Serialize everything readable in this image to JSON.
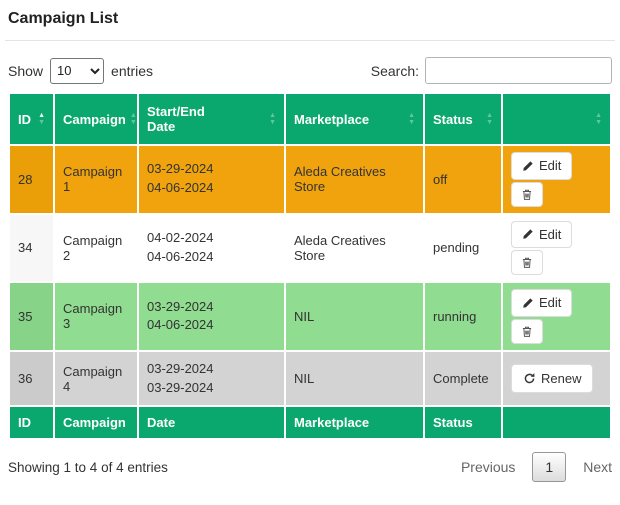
{
  "page": {
    "title": "Campaign List"
  },
  "controls": {
    "show_label": "Show",
    "page_length": "10",
    "entries_label": "entries",
    "search_label": "Search:",
    "search_value": "",
    "search_placeholder": ""
  },
  "table": {
    "header": [
      {
        "key": "id",
        "label": "ID",
        "sort": "asc"
      },
      {
        "key": "campaign",
        "label": "Campaign",
        "sort": "none"
      },
      {
        "key": "date",
        "label": "Start/End Date",
        "lines": [
          "Start/End",
          "Date"
        ],
        "sort": "none"
      },
      {
        "key": "marketplace",
        "label": "Marketplace",
        "sort": "none"
      },
      {
        "key": "status",
        "label": "Status",
        "sort": "none"
      },
      {
        "key": "actions",
        "label": "",
        "sort": "none"
      }
    ],
    "footer": [
      "ID",
      "Campaign",
      "Date",
      "Marketplace",
      "Status",
      ""
    ],
    "rows": [
      {
        "id": "28",
        "campaign": "Campaign 1",
        "dates": [
          "03-29-2024",
          "04-06-2024"
        ],
        "marketplace": "Aleda Creatives Store",
        "status": "off",
        "actions": [
          "edit",
          "delete"
        ],
        "bg": "#f0a30d",
        "bg_sorted": "#ea9e08"
      },
      {
        "id": "34",
        "campaign": "Campaign 2",
        "dates": [
          "04-02-2024",
          "04-06-2024"
        ],
        "marketplace": "Aleda Creatives Store",
        "status": "pending",
        "actions": [
          "edit",
          "delete"
        ],
        "bg": "#ffffff",
        "bg_sorted": "#f7f7f7"
      },
      {
        "id": "35",
        "campaign": "Campaign 3",
        "dates": [
          "03-29-2024",
          "04-06-2024"
        ],
        "marketplace": "NIL",
        "status": "running",
        "actions": [
          "edit",
          "delete"
        ],
        "bg": "#90dc90",
        "bg_sorted": "#87d387"
      },
      {
        "id": "36",
        "campaign": "Campaign 4",
        "dates": [
          "03-29-2024",
          "03-29-2024"
        ],
        "marketplace": "NIL",
        "status": "Complete",
        "actions": [
          "renew"
        ],
        "bg": "#d3d3d3",
        "bg_sorted": "#cbcbcb"
      }
    ]
  },
  "buttons": {
    "edit_label": "Edit",
    "renew_label": "Renew"
  },
  "pagination": {
    "info": "Showing 1 to 4 of 4 entries",
    "previous_label": "Previous",
    "current_page": "1",
    "next_label": "Next"
  },
  "colors": {
    "header_green": "#0aa86e",
    "row_orange": "#f0a30d",
    "row_white": "#ffffff",
    "row_green": "#90dc90",
    "row_gray": "#d3d3d3"
  }
}
